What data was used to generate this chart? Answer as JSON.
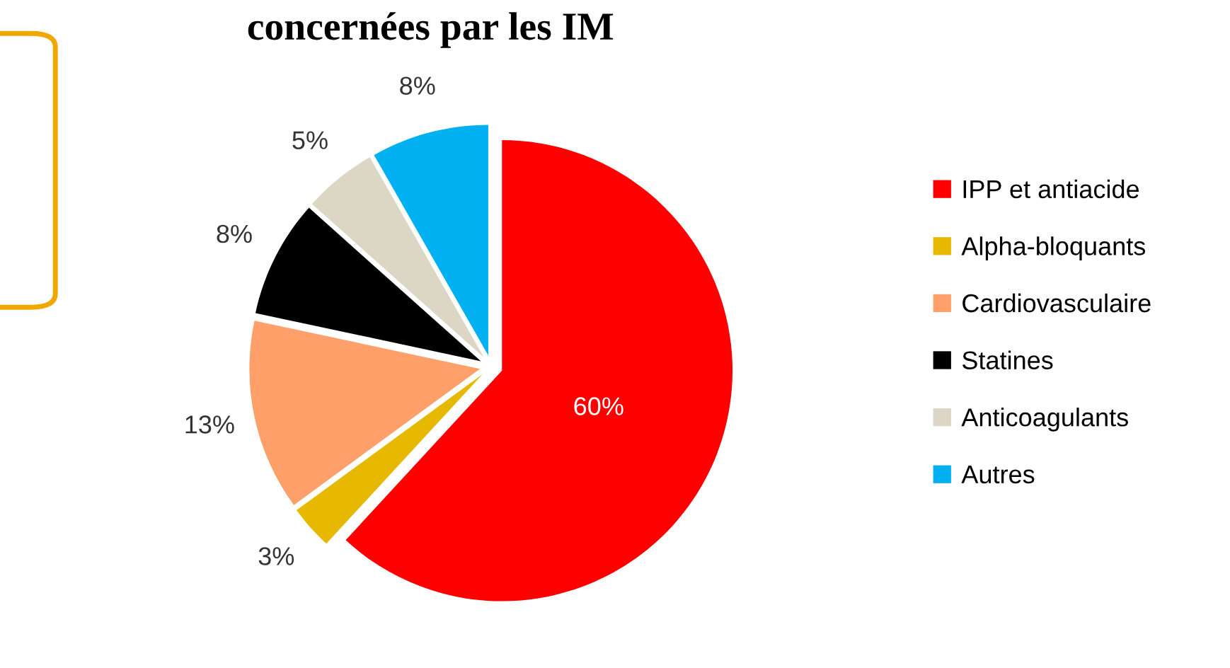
{
  "chart_data": {
    "type": "pie",
    "title": "concernées par les IM",
    "categories": [
      "IPP et antiacide",
      "Alpha-bloquants",
      "Cardiovasculaire",
      "Statines",
      "Anticoagulants",
      "Autres"
    ],
    "values": [
      60,
      3,
      13,
      8,
      5,
      8
    ],
    "colors": [
      "#ff0000",
      "#e6b800",
      "#ffa06a",
      "#000000",
      "#dcd6c4",
      "#00b0f0"
    ],
    "value_labels": [
      "60%",
      "3%",
      "13%",
      "8%",
      "5%",
      "8%"
    ],
    "legend": "right"
  }
}
